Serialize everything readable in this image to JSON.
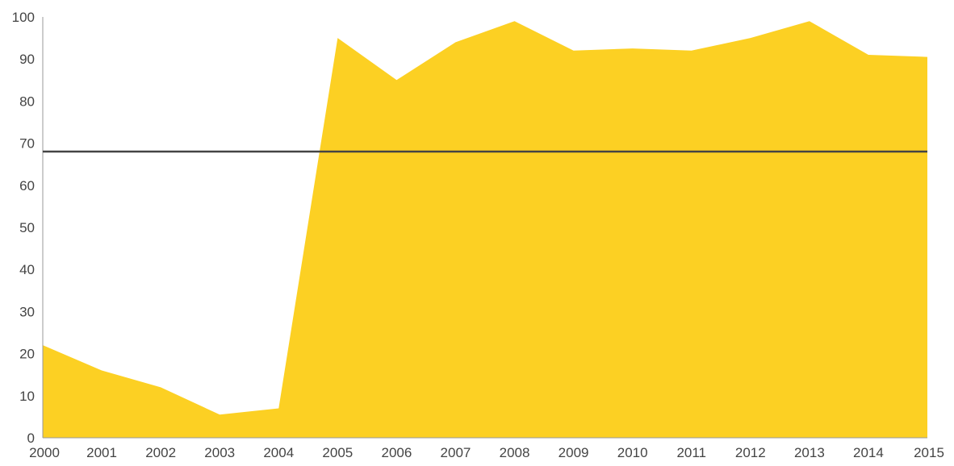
{
  "chart_data": {
    "type": "area",
    "x": [
      "2000",
      "2001",
      "2002",
      "2003",
      "2004",
      "2005",
      "2006",
      "2007",
      "2008",
      "2009",
      "2010",
      "2011",
      "2012",
      "2013",
      "2014",
      "2015"
    ],
    "series": [
      {
        "values": [
          22,
          16,
          12,
          5.5,
          7,
          95,
          85,
          94,
          99,
          92,
          92.5,
          92,
          95,
          99,
          91,
          90.5
        ]
      }
    ],
    "reference_line": {
      "y": 68
    },
    "ylim": [
      0,
      100
    ],
    "yticks": [
      0,
      10,
      20,
      30,
      40,
      50,
      60,
      70,
      80,
      90,
      100
    ],
    "xlabel": "",
    "ylabel": "",
    "grid": false,
    "legend": false,
    "colors": {
      "area": "#FCD023",
      "reference_line": "#444444",
      "axis": "#999999",
      "text": "#444444"
    }
  }
}
